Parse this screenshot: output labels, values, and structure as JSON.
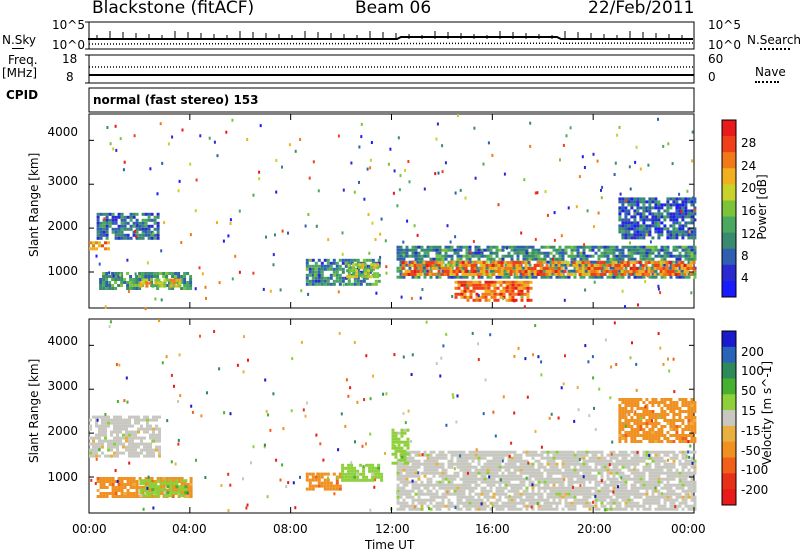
{
  "header": {
    "station": "Blackstone (fitACF)",
    "beam": "Beam 06",
    "date": "22/Feb/2011"
  },
  "panels": {
    "nsky": {
      "label": "N.Sky",
      "ticks_left": [
        "10^5",
        "10^0"
      ],
      "right_label": "N.Search",
      "ticks_right": [
        "10^5",
        "10^0"
      ]
    },
    "freq": {
      "label": "Freq.",
      "unit": "[MHz]",
      "ticks_left": [
        "18",
        "8"
      ],
      "right_label": "Nave",
      "ticks_right": [
        "60",
        "0"
      ]
    },
    "cpid": {
      "label": "CPID",
      "text": "normal (fast stereo) 153"
    }
  },
  "colors": {
    "power": [
      "#1a1aff",
      "#2a2ad0",
      "#2e5fb0",
      "#3a8a70",
      "#4aa860",
      "#7cc33a",
      "#c8d22a",
      "#f0b020",
      "#f07a18",
      "#f0401a",
      "#e81a1a"
    ],
    "velocity": [
      "#1a1acc",
      "#2a64b8",
      "#2f8a5a",
      "#48b030",
      "#8ed03a",
      "#c8c8c0",
      "#e8b040",
      "#f09020",
      "#f06018",
      "#e83018",
      "#e81a1a"
    ]
  },
  "chart_data": [
    {
      "type": "heatmap",
      "title": "Power",
      "xlabel": "Time UT",
      "ylabel": "Slant Range [km]",
      "x_ticks": [
        "00:00",
        "04:00",
        "08:00",
        "12:00",
        "16:00",
        "20:00",
        "00:00"
      ],
      "x_range_hours": [
        0,
        24
      ],
      "y_ticks": [
        1000,
        2000,
        3000,
        4000
      ],
      "ylim": [
        180,
        4600
      ],
      "colorbar": {
        "label": "Power [dB]",
        "ticks": [
          4,
          8,
          12,
          16,
          20,
          24,
          28
        ],
        "range": [
          0,
          32
        ]
      },
      "regions": [
        {
          "t0": 0.0,
          "t1": 0.8,
          "r0": 1550,
          "r1": 1700,
          "level": 0.75
        },
        {
          "t0": 0.3,
          "t1": 2.7,
          "r0": 1750,
          "r1": 2350,
          "level": 0.25
        },
        {
          "t0": 0.4,
          "t1": 4.0,
          "r0": 600,
          "r1": 1000,
          "level": 0.35
        },
        {
          "t0": 2.0,
          "t1": 3.6,
          "r0": 650,
          "r1": 850,
          "level": 0.6
        },
        {
          "t0": 8.6,
          "t1": 11.5,
          "r0": 700,
          "r1": 1300,
          "level": 0.3
        },
        {
          "t0": 10.2,
          "t1": 11.4,
          "r0": 900,
          "r1": 1200,
          "level": 0.55
        },
        {
          "t0": 12.2,
          "t1": 24.0,
          "r0": 900,
          "r1": 1600,
          "level": 0.3
        },
        {
          "t0": 12.4,
          "t1": 24.0,
          "r0": 950,
          "r1": 1250,
          "level": 0.8
        },
        {
          "t0": 14.5,
          "t1": 17.5,
          "r0": 350,
          "r1": 800,
          "level": 0.85
        },
        {
          "t0": 21.0,
          "t1": 24.0,
          "r0": 1800,
          "r1": 2700,
          "level": 0.2
        }
      ]
    },
    {
      "type": "heatmap",
      "title": "Velocity",
      "xlabel": "Time UT",
      "ylabel": "Slant Range [km]",
      "x_ticks": [
        "00:00",
        "04:00",
        "08:00",
        "12:00",
        "16:00",
        "20:00",
        "00:00"
      ],
      "x_range_hours": [
        0,
        24
      ],
      "y_ticks": [
        1000,
        2000,
        3000,
        4000
      ],
      "ylim": [
        180,
        4600
      ],
      "colorbar": {
        "label": "Velocity [m s^-1]",
        "ticks": [
          200,
          100,
          50,
          15,
          -15,
          -50,
          -100,
          -200
        ]
      },
      "regions": [
        {
          "t0": 0.0,
          "t1": 2.8,
          "r0": 1500,
          "r1": 2400,
          "color_index": 5
        },
        {
          "t0": 0.3,
          "t1": 4.0,
          "r0": 550,
          "r1": 1000,
          "color_index": 7
        },
        {
          "t0": 2.0,
          "t1": 3.8,
          "r0": 600,
          "r1": 950,
          "color_index": 4
        },
        {
          "t0": 8.6,
          "t1": 10.0,
          "r0": 700,
          "r1": 1100,
          "color_index": 7
        },
        {
          "t0": 10.0,
          "t1": 11.6,
          "r0": 900,
          "r1": 1300,
          "color_index": 4
        },
        {
          "t0": 12.2,
          "t1": 24.0,
          "r0": 300,
          "r1": 1600,
          "color_index": 5
        },
        {
          "t0": 12.0,
          "t1": 12.6,
          "r0": 1300,
          "r1": 2100,
          "color_index": 4
        },
        {
          "t0": 21.0,
          "t1": 24.0,
          "r0": 1800,
          "r1": 2800,
          "color_index": 7
        }
      ]
    }
  ]
}
